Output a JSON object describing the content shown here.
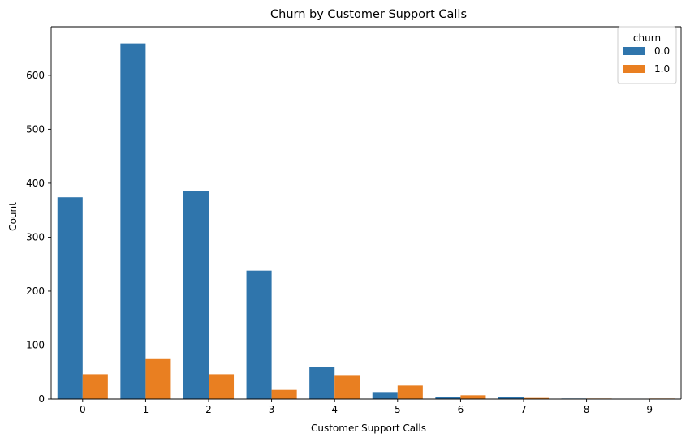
{
  "chart_data": {
    "type": "bar",
    "title": "Churn by Customer Support Calls",
    "xlabel": "Customer Support Calls",
    "ylabel": "Count",
    "categories": [
      "0",
      "1",
      "2",
      "3",
      "4",
      "5",
      "6",
      "7",
      "8",
      "9"
    ],
    "series": [
      {
        "name": "0.0",
        "color": "#2f75ac",
        "values": [
          374,
          659,
          386,
          238,
          59,
          13,
          4,
          4,
          1,
          0
        ]
      },
      {
        "name": "1.0",
        "color": "#e97f21",
        "values": [
          46,
          74,
          46,
          17,
          43,
          25,
          7,
          2,
          1,
          1
        ]
      }
    ],
    "ylim": [
      0,
      690
    ],
    "yticks": [
      0,
      100,
      200,
      300,
      400,
      500,
      600
    ],
    "grid": false,
    "legend": {
      "title": "churn",
      "placement": "top-right"
    }
  }
}
